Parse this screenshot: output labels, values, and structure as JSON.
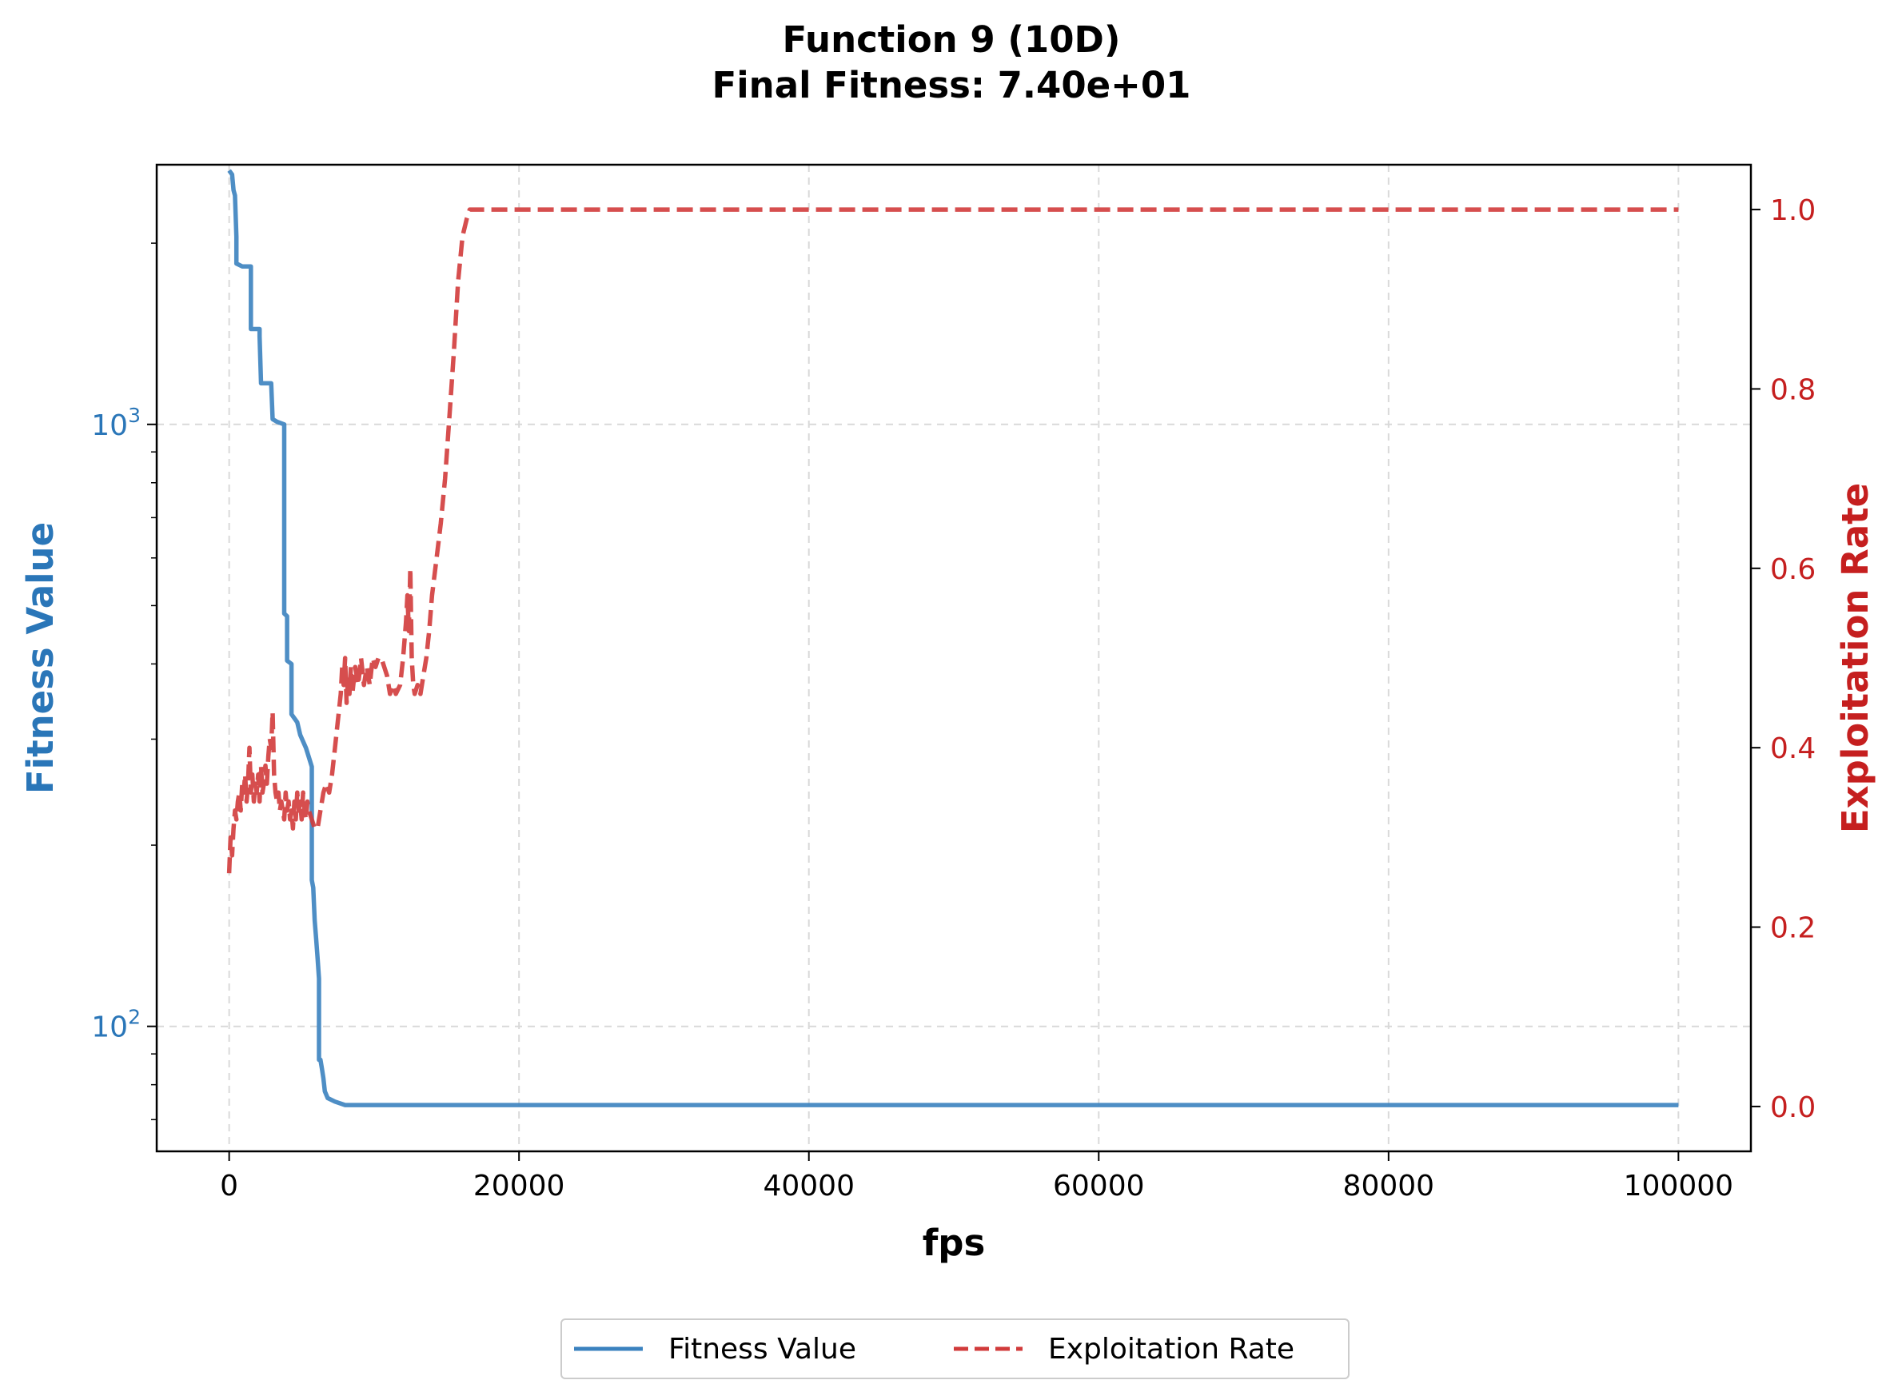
{
  "chart_data": {
    "type": "line",
    "title": "Function 9 (10D)",
    "subtitle": "Final Fitness: 7.40e+01",
    "xlabel": "fps",
    "ylabel_left": "Fitness Value",
    "ylabel_right": "Exploitation Rate",
    "xlim": [
      -5000,
      105000
    ],
    "x_ticks": [
      "0",
      "20000",
      "40000",
      "60000",
      "80000",
      "100000"
    ],
    "x_tick_values": [
      0,
      20000,
      40000,
      60000,
      80000,
      100000
    ],
    "y_left_scale": "log",
    "y_left_lim": [
      62,
      2700
    ],
    "y_left_ticks": [
      {
        "value": 100,
        "base": "10",
        "exp": "2"
      },
      {
        "value": 1000,
        "base": "10",
        "exp": "3"
      }
    ],
    "y_left_minor": [
      70,
      80,
      90,
      200,
      300,
      400,
      500,
      600,
      700,
      800,
      900,
      2000
    ],
    "y_right_lim": [
      -0.05,
      1.05
    ],
    "y_right_ticks": [
      "0.0",
      "0.2",
      "0.4",
      "0.6",
      "0.8",
      "1.0"
    ],
    "y_right_tick_values": [
      0.0,
      0.2,
      0.4,
      0.6,
      0.8,
      1.0
    ],
    "grid": true,
    "legend_position": "bottom-center",
    "series": [
      {
        "name": "Fitness Value",
        "axis": "left",
        "color": "#3b82bf",
        "style": "solid",
        "points": [
          [
            0,
            2640
          ],
          [
            200,
            2600
          ],
          [
            300,
            2450
          ],
          [
            400,
            2400
          ],
          [
            500,
            2050
          ],
          [
            500,
            1850
          ],
          [
            900,
            1830
          ],
          [
            1500,
            1830
          ],
          [
            1500,
            1440
          ],
          [
            2100,
            1440
          ],
          [
            2100,
            1400
          ],
          [
            2200,
            1170
          ],
          [
            2900,
            1170
          ],
          [
            3000,
            1020
          ],
          [
            3300,
            1010
          ],
          [
            3800,
            1000
          ],
          [
            3800,
            485
          ],
          [
            4000,
            480
          ],
          [
            4000,
            405
          ],
          [
            4300,
            400
          ],
          [
            4300,
            330
          ],
          [
            4700,
            320
          ],
          [
            4900,
            305
          ],
          [
            5300,
            290
          ],
          [
            5500,
            280
          ],
          [
            5700,
            270
          ],
          [
            5700,
            175
          ],
          [
            5800,
            170
          ],
          [
            5900,
            150
          ],
          [
            6000,
            140
          ],
          [
            6100,
            130
          ],
          [
            6200,
            120
          ],
          [
            6200,
            88
          ],
          [
            6300,
            88
          ],
          [
            6400,
            85
          ],
          [
            6500,
            82
          ],
          [
            6600,
            78
          ],
          [
            6800,
            76
          ],
          [
            7300,
            75
          ],
          [
            8000,
            74
          ],
          [
            100000,
            74
          ]
        ]
      },
      {
        "name": "Exploitation Rate",
        "axis": "right",
        "color": "#d13b3b",
        "style": "dashed",
        "points": [
          [
            0,
            0.26
          ],
          [
            100,
            0.3
          ],
          [
            200,
            0.28
          ],
          [
            300,
            0.31
          ],
          [
            400,
            0.33
          ],
          [
            500,
            0.32
          ],
          [
            600,
            0.34
          ],
          [
            700,
            0.35
          ],
          [
            800,
            0.33
          ],
          [
            900,
            0.36
          ],
          [
            1000,
            0.35
          ],
          [
            1100,
            0.37
          ],
          [
            1200,
            0.34
          ],
          [
            1300,
            0.36
          ],
          [
            1400,
            0.4
          ],
          [
            1500,
            0.35
          ],
          [
            1600,
            0.37
          ],
          [
            1700,
            0.34
          ],
          [
            1800,
            0.36
          ],
          [
            1900,
            0.35
          ],
          [
            2000,
            0.37
          ],
          [
            2100,
            0.34
          ],
          [
            2200,
            0.38
          ],
          [
            2300,
            0.35
          ],
          [
            2400,
            0.36
          ],
          [
            2500,
            0.38
          ],
          [
            2600,
            0.36
          ],
          [
            2700,
            0.39
          ],
          [
            2800,
            0.41
          ],
          [
            2900,
            0.4
          ],
          [
            3000,
            0.44
          ],
          [
            3100,
            0.37
          ],
          [
            3200,
            0.35
          ],
          [
            3300,
            0.34
          ],
          [
            3400,
            0.35
          ],
          [
            3500,
            0.33
          ],
          [
            3600,
            0.34
          ],
          [
            3700,
            0.33
          ],
          [
            3800,
            0.32
          ],
          [
            3900,
            0.35
          ],
          [
            4000,
            0.33
          ],
          [
            4100,
            0.34
          ],
          [
            4200,
            0.32
          ],
          [
            4300,
            0.33
          ],
          [
            4400,
            0.31
          ],
          [
            4500,
            0.34
          ],
          [
            4600,
            0.32
          ],
          [
            4700,
            0.35
          ],
          [
            4800,
            0.33
          ],
          [
            4900,
            0.34
          ],
          [
            5000,
            0.32
          ],
          [
            5100,
            0.35
          ],
          [
            5200,
            0.33
          ],
          [
            5300,
            0.32
          ],
          [
            5400,
            0.34
          ],
          [
            5500,
            0.33
          ],
          [
            5700,
            0.32
          ],
          [
            5900,
            0.31
          ],
          [
            6100,
            0.31
          ],
          [
            6300,
            0.33
          ],
          [
            6500,
            0.35
          ],
          [
            6700,
            0.36
          ],
          [
            6900,
            0.35
          ],
          [
            7100,
            0.37
          ],
          [
            7300,
            0.4
          ],
          [
            7500,
            0.43
          ],
          [
            7700,
            0.46
          ],
          [
            7800,
            0.49
          ],
          [
            7900,
            0.47
          ],
          [
            8000,
            0.5
          ],
          [
            8100,
            0.45
          ],
          [
            8200,
            0.48
          ],
          [
            8300,
            0.46
          ],
          [
            8400,
            0.49
          ],
          [
            8500,
            0.46
          ],
          [
            8700,
            0.49
          ],
          [
            8900,
            0.47
          ],
          [
            9100,
            0.5
          ],
          [
            9300,
            0.47
          ],
          [
            9500,
            0.49
          ],
          [
            9700,
            0.47
          ],
          [
            9900,
            0.5
          ],
          [
            10100,
            0.49
          ],
          [
            10300,
            0.5
          ],
          [
            10500,
            0.5
          ],
          [
            10700,
            0.49
          ],
          [
            10900,
            0.48
          ],
          [
            11100,
            0.46
          ],
          [
            11300,
            0.47
          ],
          [
            11500,
            0.46
          ],
          [
            11800,
            0.47
          ],
          [
            12000,
            0.5
          ],
          [
            12100,
            0.52
          ],
          [
            12200,
            0.54
          ],
          [
            12300,
            0.57
          ],
          [
            12400,
            0.53
          ],
          [
            12500,
            0.6
          ],
          [
            12600,
            0.5
          ],
          [
            12700,
            0.47
          ],
          [
            12800,
            0.46
          ],
          [
            13000,
            0.47
          ],
          [
            13200,
            0.46
          ],
          [
            13400,
            0.48
          ],
          [
            13600,
            0.5
          ],
          [
            13800,
            0.53
          ],
          [
            14000,
            0.57
          ],
          [
            14300,
            0.61
          ],
          [
            14600,
            0.65
          ],
          [
            14900,
            0.7
          ],
          [
            15200,
            0.77
          ],
          [
            15500,
            0.84
          ],
          [
            15800,
            0.92
          ],
          [
            16100,
            0.97
          ],
          [
            16400,
            0.99
          ],
          [
            16600,
            1.0
          ],
          [
            100000,
            1.0
          ]
        ]
      }
    ]
  },
  "legend": {
    "items": [
      {
        "label": "Fitness Value",
        "color": "#3b82bf",
        "style": "solid"
      },
      {
        "label": "Exploitation Rate",
        "color": "#d13b3b",
        "style": "dashed"
      }
    ]
  },
  "colors": {
    "left_axis": "#2a76b8",
    "right_axis": "#c51f1f",
    "grid": "#d9d9d9"
  }
}
